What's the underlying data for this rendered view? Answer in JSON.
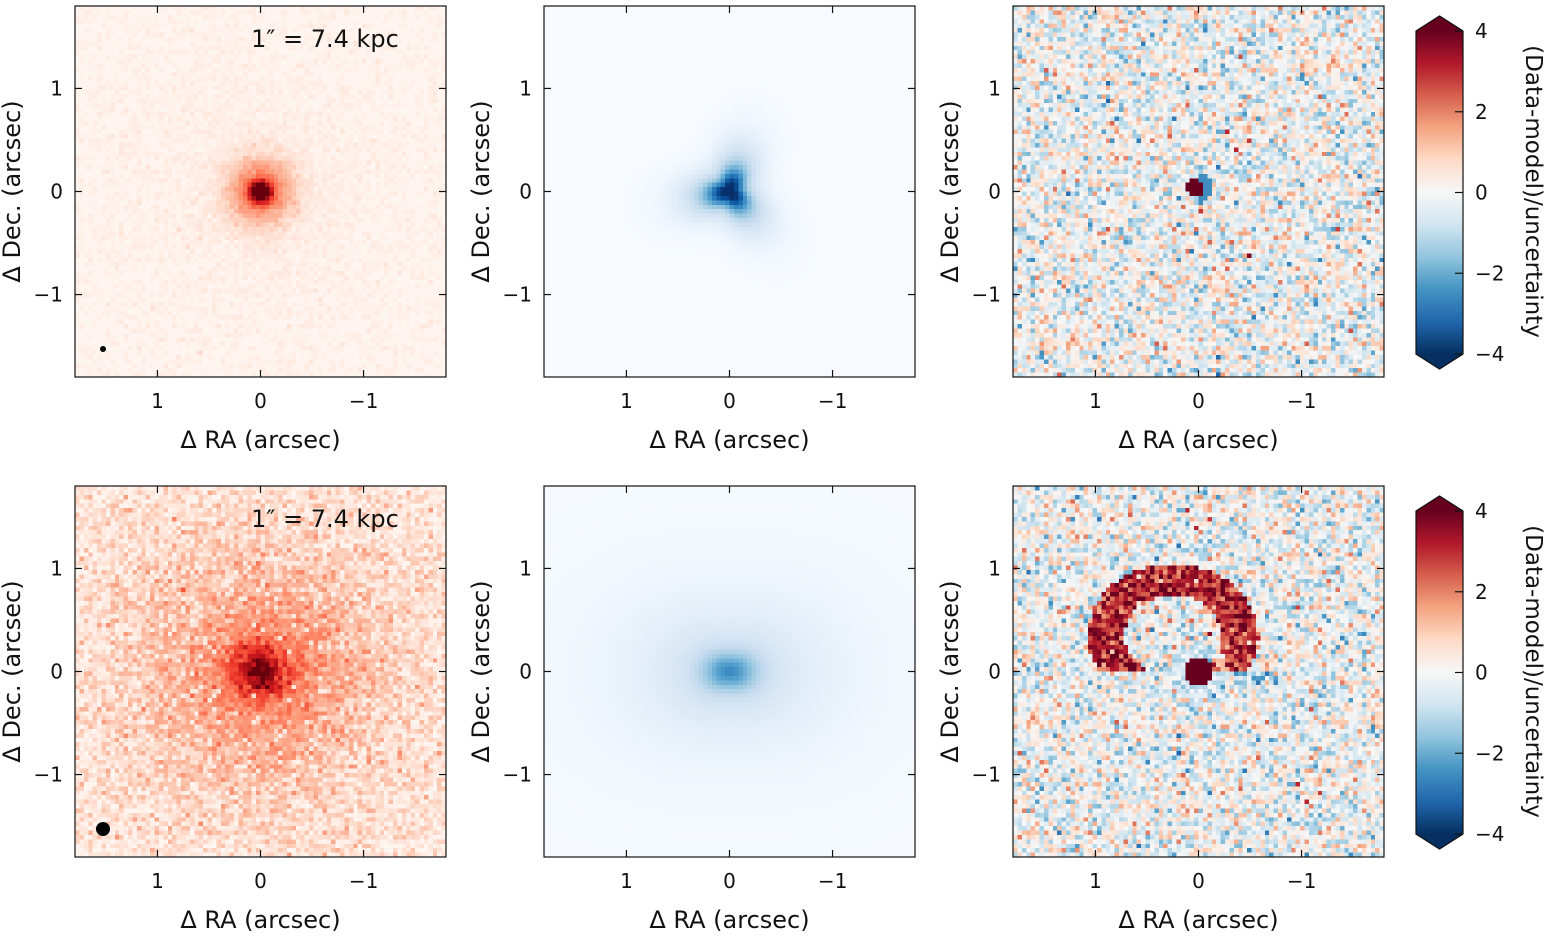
{
  "figure": {
    "rows": [
      {
        "name": "top",
        "scale_annotation": "1″ = 7.4 kpc",
        "beam": "small",
        "panels": [
          {
            "kind": "data",
            "colormap": "Reds",
            "peak": 0.92,
            "halo": 0.1
          },
          {
            "kind": "model",
            "colormap": "Blues",
            "peak": 0.75,
            "halo": 0.12
          },
          {
            "kind": "residual",
            "colormap": "RdBu_r",
            "noise": 0.9,
            "feature": "compact central residual"
          }
        ]
      },
      {
        "name": "bottom",
        "scale_annotation": "1″ = 7.4 kpc",
        "beam": "large",
        "panels": [
          {
            "kind": "data",
            "colormap": "Reds",
            "peak": 0.95,
            "halo": 0.45
          },
          {
            "kind": "model",
            "colormap": "Blues",
            "peak": 0.45,
            "halo": 0.3
          },
          {
            "kind": "residual",
            "colormap": "RdBu_r",
            "noise": 0.9,
            "feature": "arc-shaped extended residual north of nucleus"
          }
        ]
      }
    ],
    "colors": {
      "reds_high": "#67000d",
      "blues_high": "#08306b",
      "diverging_low": "#053061",
      "diverging_mid": "#f7f7f7",
      "diverging_high": "#67001f"
    }
  },
  "chart_data": [
    {
      "type": "heatmap",
      "panel": "top-left",
      "title": "",
      "xlabel": "Δ RA (arcsec)",
      "ylabel": "Δ Dec. (arcsec)",
      "xlim": [
        1.8,
        -1.8
      ],
      "ylim": [
        -1.8,
        1.8
      ],
      "xticks": [
        1,
        0,
        -1
      ],
      "yticks": [
        1,
        0,
        -1
      ],
      "xtick_labels": [
        "1",
        "0",
        "−1"
      ],
      "ytick_labels": [
        "1",
        "0",
        "−1"
      ],
      "annotation": "1″ = 7.4 kpc"
    },
    {
      "type": "heatmap",
      "panel": "top-middle",
      "xlabel": "Δ RA (arcsec)",
      "ylabel": "Δ Dec. (arcsec)",
      "xlim": [
        1.8,
        -1.8
      ],
      "ylim": [
        -1.8,
        1.8
      ],
      "xtick_labels": [
        "1",
        "0",
        "−1"
      ],
      "ytick_labels": [
        "1",
        "0",
        "−1"
      ]
    },
    {
      "type": "heatmap",
      "panel": "top-right",
      "xlabel": "Δ RA (arcsec)",
      "ylabel": "Δ Dec. (arcsec)",
      "xlim": [
        1.8,
        -1.8
      ],
      "ylim": [
        -1.8,
        1.8
      ],
      "xtick_labels": [
        "1",
        "0",
        "−1"
      ],
      "ytick_labels": [
        "1",
        "0",
        "−1"
      ],
      "colorbar": {
        "label": "(Data-model)/uncertainty",
        "range": [
          -4,
          4
        ],
        "ticks": [
          4,
          2,
          0,
          -2,
          -4
        ],
        "tick_labels": [
          "4",
          "2",
          "0",
          "−2",
          "−4"
        ],
        "extend": "both"
      }
    },
    {
      "type": "heatmap",
      "panel": "bottom-left",
      "xlabel": "Δ RA (arcsec)",
      "ylabel": "Δ Dec. (arcsec)",
      "xlim": [
        1.8,
        -1.8
      ],
      "ylim": [
        -1.8,
        1.8
      ],
      "xtick_labels": [
        "1",
        "0",
        "−1"
      ],
      "ytick_labels": [
        "1",
        "0",
        "−1"
      ],
      "annotation": "1″ = 7.4 kpc"
    },
    {
      "type": "heatmap",
      "panel": "bottom-middle",
      "xlabel": "Δ RA (arcsec)",
      "ylabel": "Δ Dec. (arcsec)",
      "xlim": [
        1.8,
        -1.8
      ],
      "ylim": [
        -1.8,
        1.8
      ],
      "xtick_labels": [
        "1",
        "0",
        "−1"
      ],
      "ytick_labels": [
        "1",
        "0",
        "−1"
      ]
    },
    {
      "type": "heatmap",
      "panel": "bottom-right",
      "xlabel": "Δ RA (arcsec)",
      "ylabel": "Δ Dec. (arcsec)",
      "xlim": [
        1.8,
        -1.8
      ],
      "ylim": [
        -1.8,
        1.8
      ],
      "xtick_labels": [
        "1",
        "0",
        "−1"
      ],
      "ytick_labels": [
        "1",
        "0",
        "−1"
      ],
      "colorbar": {
        "label": "(Data-model)/uncertainty",
        "range": [
          -4,
          4
        ],
        "ticks": [
          4,
          2,
          0,
          -2,
          -4
        ],
        "tick_labels": [
          "4",
          "2",
          "0",
          "−2",
          "−4"
        ],
        "extend": "both"
      }
    }
  ]
}
